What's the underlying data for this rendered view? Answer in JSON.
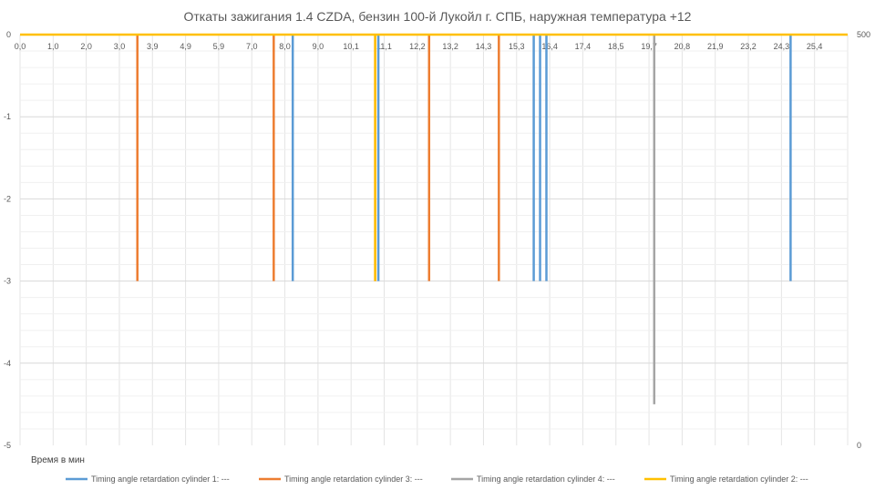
{
  "chart_data": {
    "type": "line",
    "title": "Откаты зажигания 1.4 CZDA, бензин 100-й Лукойл г. СПБ, наружная температура +12",
    "xlabel": "Время в мин",
    "ylabel": "",
    "x_tick_labels": [
      "0,0",
      "1,0",
      "2,0",
      "3,0",
      "3,9",
      "4,9",
      "5,9",
      "7,0",
      "8,0",
      "9,0",
      "10,1",
      "11,1",
      "12,2",
      "13,2",
      "14,3",
      "15,3",
      "16,4",
      "17,4",
      "18,5",
      "19,7",
      "20,8",
      "21,9",
      "23,2",
      "24,3",
      "25,4"
    ],
    "y_ticks": [
      "0",
      "-1",
      "-2",
      "-3",
      "-4",
      "-5"
    ],
    "ylim": [
      -5,
      0
    ],
    "y2_ticks": [
      "500",
      "0"
    ],
    "y2lim": [
      0,
      500
    ],
    "grid": true,
    "legend_position": "bottom",
    "series": [
      {
        "name": "Timing angle retardation cylinder 1: ---",
        "color": "#5B9BD5",
        "spikes": [
          {
            "x": 8.6,
            "y": -3
          },
          {
            "x": 11.3,
            "y": -3
          },
          {
            "x": 16.2,
            "y": -3
          },
          {
            "x": 16.4,
            "y": -3
          },
          {
            "x": 16.6,
            "y": -3
          },
          {
            "x": 24.3,
            "y": -3
          }
        ]
      },
      {
        "name": "Timing angle retardation cylinder 3: ---",
        "color": "#ED7D31",
        "spikes": [
          {
            "x": 3.7,
            "y": -3
          },
          {
            "x": 8.0,
            "y": -3
          },
          {
            "x": 11.2,
            "y": -3
          },
          {
            "x": 12.9,
            "y": -3
          },
          {
            "x": 15.1,
            "y": -3
          }
        ]
      },
      {
        "name": "Timing angle retardation cylinder 4: ---",
        "color": "#A5A5A5",
        "spikes": [
          {
            "x": 20.0,
            "y": -4.5
          }
        ]
      },
      {
        "name": "Timing angle retardation cylinder 2: ---",
        "color": "#FFC000",
        "spikes": [
          {
            "x": 11.2,
            "y": -3
          }
        ],
        "baseline": 0
      }
    ]
  }
}
